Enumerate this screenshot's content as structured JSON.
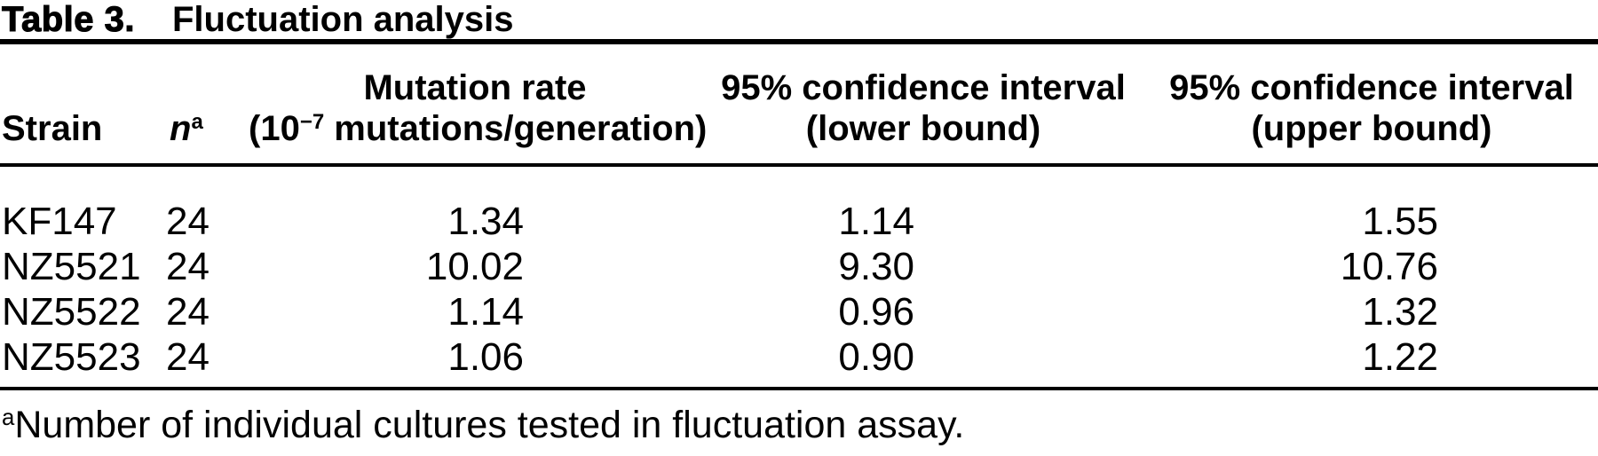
{
  "colors": {
    "background": "#ffffff",
    "text": "#000000",
    "rule": "#000000"
  },
  "title": {
    "label": "Table 3.",
    "text": "Fluctuation analysis"
  },
  "table": {
    "header": {
      "strain": "Strain",
      "n_base": "n",
      "n_sup": "a",
      "rate_line1": "Mutation rate",
      "rate_line2_prefix": "(10",
      "rate_line2_sup": "−7",
      "rate_line2_suffix": " mutations/generation)",
      "ci_lower_line1": "95% confidence interval",
      "ci_lower_line2": "(lower bound)",
      "ci_upper_line1": "95% confidence interval",
      "ci_upper_line2": "(upper bound)"
    },
    "rows": [
      {
        "strain": "KF147",
        "n": "24",
        "rate": "1.34",
        "lower": "1.14",
        "upper": "1.55"
      },
      {
        "strain": "NZ5521",
        "n": "24",
        "rate": "10.02",
        "lower": "9.30",
        "upper": "10.76"
      },
      {
        "strain": "NZ5522",
        "n": "24",
        "rate": "1.14",
        "lower": "0.96",
        "upper": "1.32"
      },
      {
        "strain": "NZ5523",
        "n": "24",
        "rate": "1.06",
        "lower": "0.90",
        "upper": "1.22"
      }
    ],
    "footnote": {
      "marker": "a",
      "text": "Number of individual cultures tested in fluctuation assay."
    }
  }
}
